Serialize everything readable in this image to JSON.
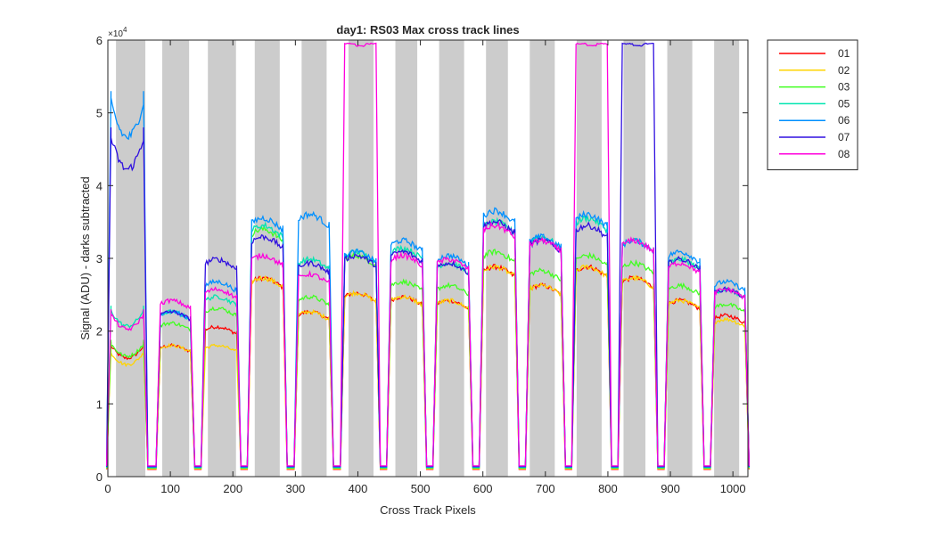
{
  "chart_data": {
    "type": "line",
    "title": "day1: RS03  Max cross track lines",
    "xlabel": "Cross Track Pixels",
    "ylabel": "Signal (ADU) - darks subtracted",
    "y_exponent_label": "×10",
    "y_exponent_power": "4",
    "xlim": [
      0,
      1024
    ],
    "ylim": [
      0,
      60000
    ],
    "x_ticks": [
      0,
      100,
      200,
      300,
      400,
      500,
      600,
      700,
      800,
      900,
      1000
    ],
    "y_ticks": [
      0,
      10000,
      20000,
      30000,
      40000,
      50000,
      60000
    ],
    "y_tick_labels": [
      "0",
      "1",
      "2",
      "3",
      "4",
      "5",
      "6"
    ],
    "legend_position": "outside-top-right",
    "grid": false,
    "shaded_x_ranges": [
      [
        13,
        60
      ],
      [
        87,
        130
      ],
      [
        160,
        205
      ],
      [
        235,
        275
      ],
      [
        310,
        350
      ],
      [
        385,
        425
      ],
      [
        460,
        495
      ],
      [
        530,
        570
      ],
      [
        605,
        640
      ],
      [
        675,
        715
      ],
      [
        750,
        790
      ],
      [
        825,
        860
      ],
      [
        895,
        935
      ],
      [
        970,
        1010
      ]
    ],
    "shade_color": "#cccccc",
    "segments": [
      {
        "x0": 0,
        "x1": 62,
        "top": {
          "01": 18500,
          "02": 17500,
          "03": 18800,
          "05": 23500,
          "06": 53000,
          "07": 48000,
          "08": 23000
        }
      },
      {
        "x0": 79,
        "x1": 137,
        "top": {
          "01": 17500,
          "02": 17500,
          "03": 20500,
          "05": 22000,
          "06": 22000,
          "07": 22000,
          "08": 23500
        }
      },
      {
        "x0": 151,
        "x1": 211,
        "top": {
          "01": 20000,
          "02": 17500,
          "03": 22500,
          "05": 24000,
          "06": 26000,
          "07": 29000,
          "08": 25000
        }
      },
      {
        "x0": 225,
        "x1": 285,
        "top": {
          "01": 26500,
          "02": 26500,
          "03": 33000,
          "05": 33500,
          "06": 34500,
          "07": 32000,
          "08": 29500
        }
      },
      {
        "x0": 300,
        "x1": 359,
        "top": {
          "01": 22000,
          "02": 22000,
          "03": 24000,
          "05": 29000,
          "06": 35000,
          "07": 28500,
          "08": 27000
        }
      },
      {
        "x0": 374,
        "x1": 434,
        "top": {
          "01": 24500,
          "02": 24500,
          "03": 29500,
          "05": 30000,
          "06": 30000,
          "07": 29500,
          "08": 59500
        }
      },
      {
        "x0": 448,
        "x1": 508,
        "top": {
          "01": 24000,
          "02": 24000,
          "03": 26000,
          "05": 30500,
          "06": 31500,
          "07": 30000,
          "08": 29500
        }
      },
      {
        "x0": 522,
        "x1": 582,
        "top": {
          "01": 23500,
          "02": 23500,
          "03": 25500,
          "05": 28500,
          "06": 29500,
          "07": 28500,
          "08": 29000
        }
      },
      {
        "x0": 596,
        "x1": 656,
        "top": {
          "01": 28000,
          "02": 28000,
          "03": 30000,
          "05": 34000,
          "06": 35500,
          "07": 34000,
          "08": 33500
        }
      },
      {
        "x0": 670,
        "x1": 730,
        "top": {
          "01": 25500,
          "02": 25500,
          "03": 27500,
          "05": 32000,
          "06": 32000,
          "07": 31500,
          "08": 31500
        }
      },
      {
        "x0": 744,
        "x1": 804,
        "top": {
          "01": 28000,
          "02": 28000,
          "03": 29500,
          "05": 34500,
          "06": 35000,
          "07": 33500,
          "08": 59500
        }
      },
      {
        "x0": 818,
        "x1": 878,
        "top": {
          "01": 26500,
          "02": 26500,
          "03": 28500,
          "05": 31500,
          "06": 31500,
          "07": 59500,
          "08": 31500
        }
      },
      {
        "x0": 892,
        "x1": 952,
        "top": {
          "01": 23500,
          "02": 23500,
          "03": 25500,
          "05": 29000,
          "06": 30000,
          "07": 29000,
          "08": 28500
        }
      },
      {
        "x0": 966,
        "x1": 1024,
        "top": {
          "01": 21500,
          "02": 21000,
          "03": 23000,
          "05": 25000,
          "06": 26000,
          "07": 25000,
          "08": 25000
        }
      }
    ],
    "gap_level": 1000,
    "series": [
      {
        "name": "01",
        "color": "#ff0000"
      },
      {
        "name": "02",
        "color": "#ffd400"
      },
      {
        "name": "03",
        "color": "#40ff20"
      },
      {
        "name": "05",
        "color": "#00e5b0"
      },
      {
        "name": "06",
        "color": "#0090ff"
      },
      {
        "name": "07",
        "color": "#3010e0"
      },
      {
        "name": "08",
        "color": "#ff00dd"
      }
    ]
  }
}
